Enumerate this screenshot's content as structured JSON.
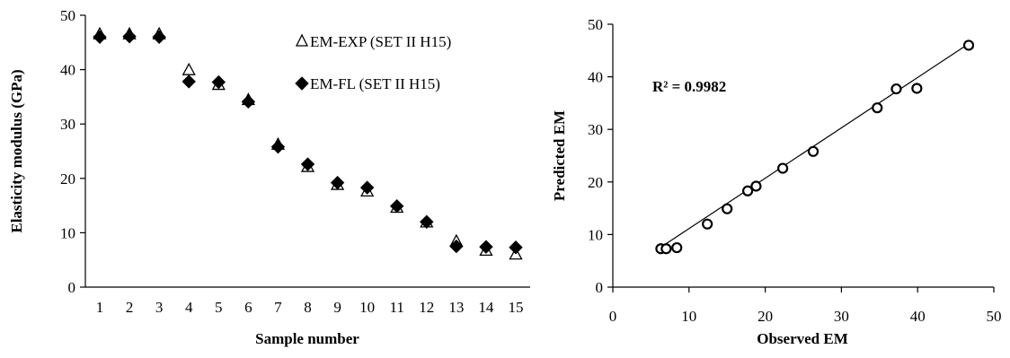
{
  "chart_data": [
    {
      "type": "scatter",
      "xlabel": "Sample number",
      "ylabel": "Elasticity modulus (GPa)",
      "xlim": [
        0.5,
        15.5
      ],
      "ylim": [
        0,
        50
      ],
      "xticks": [
        1,
        2,
        3,
        4,
        5,
        6,
        7,
        8,
        9,
        10,
        11,
        12,
        13,
        14,
        15
      ],
      "yticks": [
        0,
        10,
        20,
        30,
        40,
        50
      ],
      "legend_position": "top-right",
      "grid": false,
      "series": [
        {
          "name": "EM-EXP (SET II H15)",
          "marker": "open-triangle",
          "x": [
            1,
            2,
            3,
            4,
            5,
            6,
            7,
            8,
            9,
            10,
            11,
            12,
            13,
            14,
            15
          ],
          "y": [
            46.5,
            46.5,
            46.5,
            39.9,
            37.2,
            34.4,
            26.2,
            22.1,
            18.8,
            17.6,
            14.6,
            11.9,
            8.4,
            6.7,
            6.0
          ]
        },
        {
          "name": "EM-FL (SET II H15)",
          "marker": "filled-diamond",
          "x": [
            1,
            2,
            3,
            4,
            5,
            6,
            7,
            8,
            9,
            10,
            11,
            12,
            13,
            14,
            15
          ],
          "y": [
            46.0,
            46.1,
            46.0,
            37.8,
            37.7,
            34.1,
            25.8,
            22.6,
            19.2,
            18.3,
            14.9,
            12.0,
            7.5,
            7.4,
            7.3
          ]
        }
      ]
    },
    {
      "type": "scatter",
      "xlabel": "Observed EM",
      "ylabel": "Predicted EM",
      "xlim": [
        0,
        50
      ],
      "ylim": [
        0,
        50
      ],
      "xticks": [
        0,
        10,
        20,
        30,
        40,
        50
      ],
      "yticks": [
        0,
        10,
        20,
        30,
        40,
        50
      ],
      "grid": false,
      "annotation": "R² = 0.9982",
      "trendline": {
        "x": [
          6.0,
          46.5
        ],
        "y": [
          7.3,
          46.1
        ]
      },
      "series": [
        {
          "marker": "open-circle",
          "x": [
            6.3,
            7.0,
            8.4,
            12.4,
            15.0,
            17.7,
            18.8,
            22.3,
            26.3,
            34.7,
            37.2,
            39.9,
            46.7
          ],
          "y": [
            7.3,
            7.3,
            7.5,
            12.0,
            14.9,
            18.3,
            19.2,
            22.6,
            25.8,
            34.1,
            37.7,
            37.8,
            46.0
          ]
        }
      ]
    }
  ]
}
